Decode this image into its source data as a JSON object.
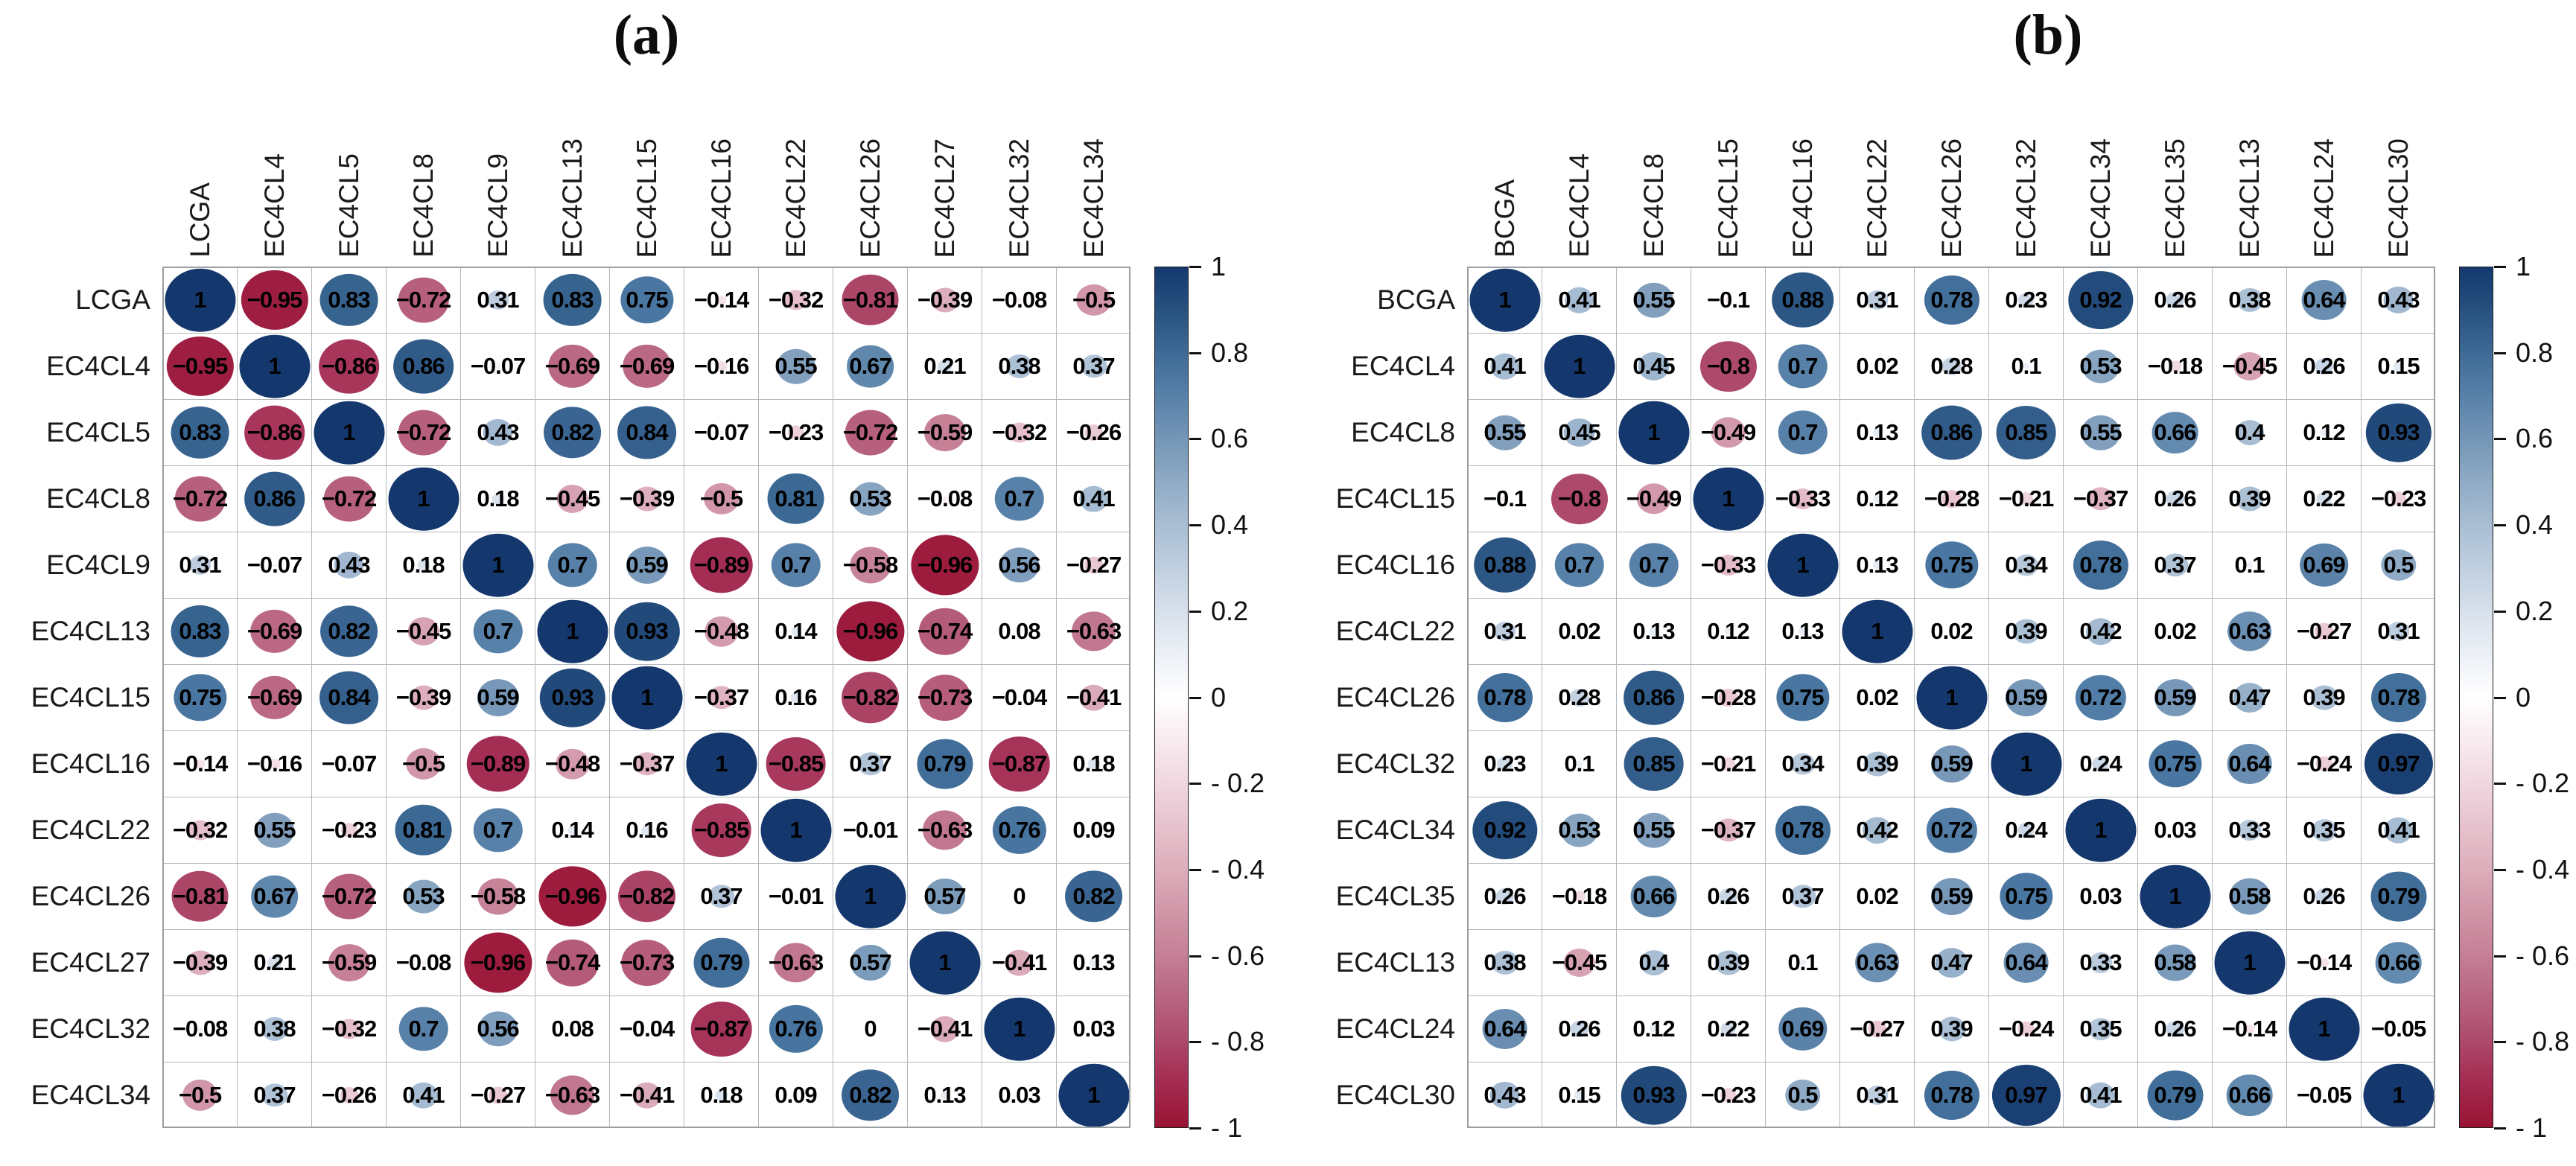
{
  "palette": {
    "blue": [
      [
        0,
        "#ffffff"
      ],
      [
        0.15,
        "#e2e9f1"
      ],
      [
        0.3,
        "#c0cfe0"
      ],
      [
        0.45,
        "#9db5cd"
      ],
      [
        0.6,
        "#7496b7"
      ],
      [
        0.75,
        "#4a77a2"
      ],
      [
        0.9,
        "#27517f"
      ],
      [
        1,
        "#14386e"
      ]
    ],
    "red": [
      [
        0,
        "#ffffff"
      ],
      [
        0.15,
        "#f4e1e7"
      ],
      [
        0.3,
        "#e7c2cd"
      ],
      [
        0.45,
        "#d7a2b2"
      ],
      [
        0.6,
        "#c57f95"
      ],
      [
        0.75,
        "#b25877"
      ],
      [
        0.9,
        "#a32a50"
      ],
      [
        1,
        "#991232"
      ]
    ]
  },
  "chart_data": [
    {
      "type": "heatmap",
      "subtype": "correlogram",
      "title": "(a)",
      "value_range": [
        -1,
        1
      ],
      "categories": [
        "LCGA",
        "EC4CL4",
        "EC4CL5",
        "EC4CL8",
        "EC4CL9",
        "EC4CL13",
        "EC4CL15",
        "EC4CL16",
        "EC4CL22",
        "EC4CL26",
        "EC4CL27",
        "EC4CL32",
        "EC4CL34"
      ],
      "matrix": [
        [
          1,
          -0.95,
          0.83,
          -0.72,
          0.31,
          0.83,
          0.75,
          -0.14,
          -0.32,
          -0.81,
          -0.39,
          -0.08,
          -0.5
        ],
        [
          -0.95,
          1,
          -0.86,
          0.86,
          -0.07,
          -0.69,
          -0.69,
          -0.16,
          0.55,
          0.67,
          0.21,
          0.38,
          0.37
        ],
        [
          0.83,
          -0.86,
          1,
          -0.72,
          0.43,
          0.82,
          0.84,
          -0.07,
          -0.23,
          -0.72,
          -0.59,
          -0.32,
          -0.26
        ],
        [
          -0.72,
          0.86,
          -0.72,
          1,
          0.18,
          -0.45,
          -0.39,
          -0.5,
          0.81,
          0.53,
          -0.08,
          0.7,
          0.41
        ],
        [
          0.31,
          -0.07,
          0.43,
          0.18,
          1,
          0.7,
          0.59,
          -0.89,
          0.7,
          -0.58,
          -0.96,
          0.56,
          -0.27
        ],
        [
          0.83,
          -0.69,
          0.82,
          -0.45,
          0.7,
          1,
          0.93,
          -0.48,
          0.14,
          -0.96,
          -0.74,
          0.08,
          -0.63
        ],
        [
          0.75,
          -0.69,
          0.84,
          -0.39,
          0.59,
          0.93,
          1,
          -0.37,
          0.16,
          -0.82,
          -0.73,
          -0.04,
          -0.41
        ],
        [
          -0.14,
          -0.16,
          -0.07,
          -0.5,
          -0.89,
          -0.48,
          -0.37,
          1,
          -0.85,
          0.37,
          0.79,
          -0.87,
          0.18
        ],
        [
          -0.32,
          0.55,
          -0.23,
          0.81,
          0.7,
          0.14,
          0.16,
          -0.85,
          1,
          -0.01,
          -0.63,
          0.76,
          0.09
        ],
        [
          -0.81,
          0.67,
          -0.72,
          0.53,
          -0.58,
          -0.96,
          -0.82,
          0.37,
          -0.01,
          1,
          0.57,
          0,
          0.82
        ],
        [
          -0.39,
          0.21,
          -0.59,
          -0.08,
          -0.96,
          -0.74,
          -0.73,
          0.79,
          -0.63,
          0.57,
          1,
          -0.41,
          0.13
        ],
        [
          -0.08,
          0.38,
          -0.32,
          0.7,
          0.56,
          0.08,
          -0.04,
          -0.87,
          0.76,
          0,
          -0.41,
          1,
          0.03
        ],
        [
          -0.5,
          0.37,
          -0.26,
          0.41,
          -0.27,
          -0.63,
          -0.41,
          0.18,
          0.09,
          0.82,
          0.13,
          0.03,
          1
        ]
      ],
      "colorbar": {
        "position": "right",
        "ticks": [
          "1",
          "0.8",
          "0.6",
          "0.4",
          "0.2",
          "0",
          "- 0.2",
          "- 0.4",
          "- 0.6",
          "- 0.8",
          "- 1"
        ]
      }
    },
    {
      "type": "heatmap",
      "subtype": "correlogram",
      "title": "(b)",
      "value_range": [
        -1,
        1
      ],
      "categories": [
        "BCGA",
        "EC4CL4",
        "EC4CL8",
        "EC4CL15",
        "EC4CL16",
        "EC4CL22",
        "EC4CL26",
        "EC4CL32",
        "EC4CL34",
        "EC4CL35",
        "EC4CL13",
        "EC4CL24",
        "EC4CL30"
      ],
      "matrix": [
        [
          1,
          0.41,
          0.55,
          -0.1,
          0.88,
          0.31,
          0.78,
          0.23,
          0.92,
          0.26,
          0.38,
          0.64,
          0.43
        ],
        [
          0.41,
          1,
          0.45,
          -0.8,
          0.7,
          0.02,
          0.28,
          0.1,
          0.53,
          -0.18,
          -0.45,
          0.26,
          0.15
        ],
        [
          0.55,
          0.45,
          1,
          -0.49,
          0.7,
          0.13,
          0.86,
          0.85,
          0.55,
          0.66,
          0.4,
          0.12,
          0.93
        ],
        [
          -0.1,
          -0.8,
          -0.49,
          1,
          -0.33,
          0.12,
          -0.28,
          -0.21,
          -0.37,
          0.26,
          0.39,
          0.22,
          -0.23
        ],
        [
          0.88,
          0.7,
          0.7,
          -0.33,
          1,
          0.13,
          0.75,
          0.34,
          0.78,
          0.37,
          0.1,
          0.69,
          0.5
        ],
        [
          0.31,
          0.02,
          0.13,
          0.12,
          0.13,
          1,
          0.02,
          0.39,
          0.42,
          0.02,
          0.63,
          -0.27,
          0.31
        ],
        [
          0.78,
          0.28,
          0.86,
          -0.28,
          0.75,
          0.02,
          1,
          0.59,
          0.72,
          0.59,
          0.47,
          0.39,
          0.78
        ],
        [
          0.23,
          0.1,
          0.85,
          -0.21,
          0.34,
          0.39,
          0.59,
          1,
          0.24,
          0.75,
          0.64,
          -0.24,
          0.97
        ],
        [
          0.92,
          0.53,
          0.55,
          -0.37,
          0.78,
          0.42,
          0.72,
          0.24,
          1,
          0.03,
          0.33,
          0.35,
          0.41
        ],
        [
          0.26,
          -0.18,
          0.66,
          0.26,
          0.37,
          0.02,
          0.59,
          0.75,
          0.03,
          1,
          0.58,
          0.26,
          0.79
        ],
        [
          0.38,
          -0.45,
          0.4,
          0.39,
          0.1,
          0.63,
          0.47,
          0.64,
          0.33,
          0.58,
          1,
          -0.14,
          0.66
        ],
        [
          0.64,
          0.26,
          0.12,
          0.22,
          0.69,
          -0.27,
          0.39,
          -0.24,
          0.35,
          0.26,
          -0.14,
          1,
          -0.05
        ],
        [
          0.43,
          0.15,
          0.93,
          -0.23,
          0.5,
          0.31,
          0.78,
          0.97,
          0.41,
          0.79,
          0.66,
          -0.05,
          1
        ]
      ],
      "colorbar": {
        "position": "right",
        "ticks": [
          "1",
          "0.8",
          "0.6",
          "0.4",
          "0.2",
          "0",
          "- 0.2",
          "- 0.4",
          "- 0.6",
          "- 0.8",
          "- 1"
        ]
      }
    }
  ]
}
